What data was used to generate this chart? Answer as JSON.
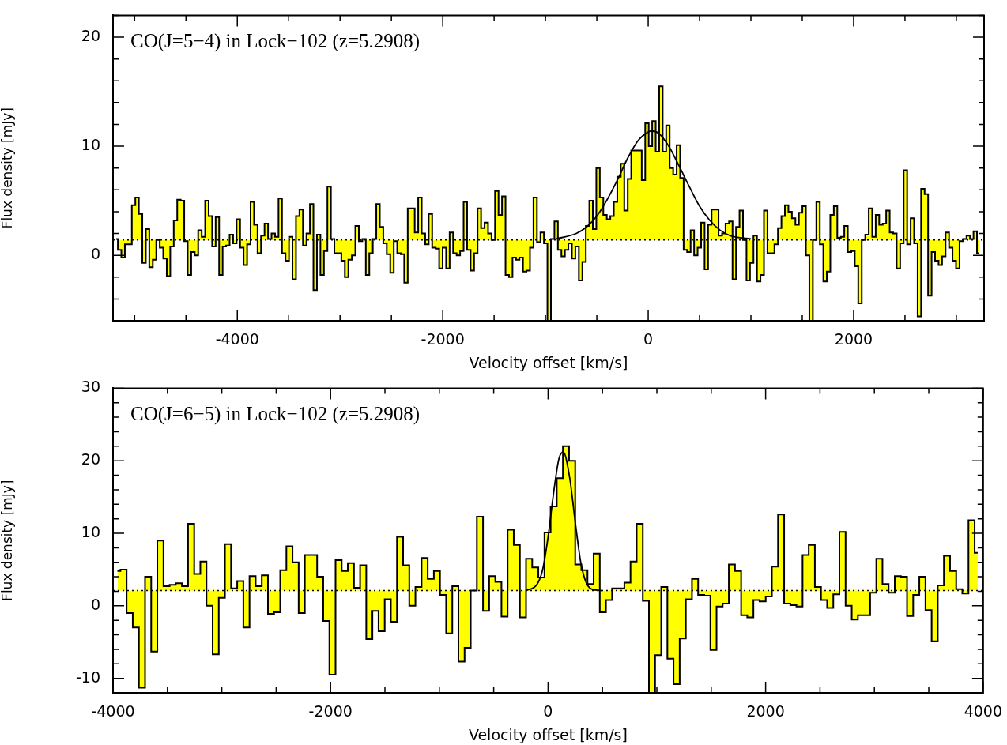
{
  "chart_data": [
    {
      "type": "step",
      "title": "CO(J=5−4) in Lock−102 (z=5.2908)",
      "xlabel": "Velocity offset [km/s]",
      "ylabel": "Flux density [mJy]",
      "xlim": [
        -5210,
        3270
      ],
      "ylim": [
        -6,
        22
      ],
      "xticks": [
        {
          "value": -5000,
          "label": null
        },
        {
          "value": -4500,
          "label": null
        },
        -4000,
        {
          "value": -3500,
          "label": null
        },
        {
          "value": -3000,
          "label": null
        },
        {
          "value": -2500,
          "label": null
        },
        -2000,
        {
          "value": -1500,
          "label": null
        },
        {
          "value": -1000,
          "label": null
        },
        {
          "value": -500,
          "label": null
        },
        0,
        {
          "value": 500,
          "label": null
        },
        {
          "value": 1000,
          "label": null
        },
        {
          "value": 1500,
          "label": null
        },
        2000,
        {
          "value": 2500,
          "label": null
        },
        {
          "value": 3000,
          "label": null
        }
      ],
      "yticks": [
        {
          "value": -6,
          "label": null
        },
        {
          "value": -4,
          "label": null
        },
        {
          "value": -2,
          "label": null
        },
        0,
        {
          "value": 2,
          "label": null
        },
        {
          "value": 4,
          "label": null
        },
        {
          "value": 6,
          "label": null
        },
        {
          "value": 8,
          "label": null
        },
        10,
        {
          "value": 12,
          "label": null
        },
        {
          "value": 14,
          "label": null
        },
        {
          "value": 16,
          "label": null
        },
        {
          "value": 18,
          "label": null
        },
        20,
        {
          "value": 22,
          "label": null
        }
      ],
      "ref_lines": [
        {
          "axis": "y",
          "value": 1.4,
          "color": "#000000",
          "line_style": "dotted"
        }
      ],
      "series": [
        {
          "type": "area",
          "color": "#ffff00",
          "x": [
            -5180,
            -5146,
            -5112,
            -5078,
            -5044,
            -5010,
            -4976,
            -4942,
            -4908,
            -4874,
            -4840,
            -4806,
            -4772,
            -4738,
            -4704,
            -4670,
            -4636,
            -4602,
            -4568,
            -4534,
            -4500,
            -4466,
            -4432,
            -4398,
            -4364,
            -4330,
            -4296,
            -4262,
            -4228,
            -4194,
            -4160,
            -4126,
            -4092,
            -4058,
            -4024,
            -3990,
            -3956,
            -3922,
            -3888,
            -3854,
            -3820,
            -3786,
            -3752,
            -3718,
            -3684,
            -3650,
            -3616,
            -3582,
            -3548,
            -3514,
            -3480,
            -3446,
            -3412,
            -3378,
            -3344,
            -3310,
            -3276,
            -3242,
            -3208,
            -3174,
            -3140,
            -3106,
            -3072,
            -3038,
            -3004,
            -2970,
            -2936,
            -2902,
            -2868,
            -2834,
            -2800,
            -2766,
            -2732,
            -2698,
            -2664,
            -2630,
            -2596,
            -2562,
            -2528,
            -2494,
            -2460,
            -2426,
            -2392,
            -2358,
            -2324,
            -2290,
            -2256,
            -2222,
            -2188,
            -2154,
            -2120,
            -2086,
            -2052,
            -2018,
            -1984,
            -1950,
            -1916,
            -1882,
            -1848,
            -1814,
            -1780,
            -1746,
            -1712,
            -1678,
            -1644,
            -1610,
            -1576,
            -1542,
            -1508,
            -1474,
            -1440,
            -1406,
            -1372,
            -1338,
            -1304,
            -1270,
            -1236,
            -1202,
            -1168,
            -1134,
            -1100,
            -1066,
            -1032,
            -998,
            -964,
            -930,
            -896,
            -862,
            -828,
            -794,
            -760,
            -726,
            -692,
            -658,
            -624,
            -590,
            -556,
            -522,
            -488,
            -454,
            -420,
            -386,
            -352,
            -318,
            -284,
            -250,
            -216,
            -182,
            -148,
            -114,
            -80,
            -46,
            -12,
            22,
            56,
            90,
            124,
            158,
            192,
            226,
            260,
            294,
            328,
            362,
            396,
            430,
            464,
            498,
            532,
            566,
            600,
            634,
            668,
            702,
            736,
            770,
            804,
            838,
            872,
            906,
            940,
            974,
            1008,
            1042,
            1076,
            1110,
            1144,
            1178,
            1212,
            1246,
            1280,
            1314,
            1348,
            1382,
            1416,
            1450,
            1484,
            1518,
            1552,
            1586,
            1620,
            1654,
            1688,
            1722,
            1756,
            1790,
            1824,
            1858,
            1892,
            1926,
            1960,
            1994,
            2028,
            2062,
            2096,
            2130,
            2164,
            2198,
            2232,
            2266,
            2300,
            2334,
            2368,
            2402,
            2436,
            2470,
            2504,
            2538,
            2572,
            2606,
            2640,
            2674,
            2708,
            2742,
            2776,
            2810,
            2844,
            2878,
            2912,
            2946,
            2980,
            3014,
            3048,
            3082,
            3116,
            3150,
            3184,
            3218
          ],
          "values": [
            1.5,
            0.5,
            -0.2,
            1.0,
            1.0,
            4.6,
            5.3,
            3.8,
            -0.7,
            2.4,
            -1.1,
            -0.4,
            1.4,
            0.7,
            -0.3,
            -1.9,
            0.8,
            3.2,
            5.1,
            5.0,
            1.3,
            -1.8,
            0.3,
            0.0,
            2.3,
            1.7,
            5.0,
            3.6,
            0.8,
            3.5,
            -1.8,
            0.8,
            0.9,
            1.9,
            1.1,
            3.3,
            0.7,
            -0.9,
            1.0,
            4.9,
            2.8,
            0.2,
            1.8,
            2.9,
            1.5,
            2.0,
            1.7,
            5.2,
            0.2,
            -0.5,
            1.7,
            -2.2,
            3.6,
            4.2,
            0.9,
            2.0,
            4.7,
            -3.2,
            1.9,
            -1.8,
            0.4,
            6.3,
            1.5,
            0.2,
            0.2,
            -0.5,
            -2.0,
            -0.4,
            0.0,
            2.7,
            1.3,
            1.5,
            -1.8,
            0.2,
            1.5,
            4.7,
            2.6,
            1.1,
            0.1,
            -1.6,
            1.3,
            0.2,
            0.1,
            -2.5,
            4.3,
            4.3,
            2.1,
            5.3,
            2.0,
            1.0,
            3.8,
            0.7,
            0.6,
            -1.2,
            0.7,
            -1.2,
            2.1,
            0.2,
            0.0,
            0.4,
            4.9,
            0.5,
            -1.4,
            0.2,
            4.3,
            2.5,
            3.0,
            2.0,
            1.4,
            5.9,
            3.7,
            5.4,
            -1.8,
            -2.0,
            -0.2,
            -0.4,
            -0.2,
            -1.5,
            -1.4,
            0.7,
            5.3,
            1.2,
            2.1,
            1.1,
            -6.0,
            1.5,
            3.1,
            0.5,
            -0.1,
            0.5,
            1.1,
            -0.3,
            0.8,
            -2.3,
            -0.6,
            2.7,
            5.0,
            2.4,
            8.0,
            5.3,
            3.7,
            3.3,
            3.6,
            4.9,
            7.2,
            8.4,
            4.1,
            7.0,
            9.6,
            9.6,
            9.6,
            6.9,
            12.1,
            10.0,
            12.3,
            9.5,
            15.5,
            9.5,
            11.9,
            8.0,
            7.4,
            10.1,
            7.1,
            0.5,
            0.3,
            2.3,
            0.0,
            0.7,
            3.0,
            -1.3,
            2.8,
            4.2,
            4.2,
            1.8,
            2.0,
            2.9,
            3.1,
            -2.2,
            2.6,
            4.1,
            1.4,
            -2.3,
            -0.7,
            1.8,
            -2.4,
            -1.8,
            4.1,
            0.2,
            0.2,
            1.0,
            2.5,
            3.6,
            4.6,
            4.0,
            3.4,
            2.8,
            3.9,
            4.5,
            0.0,
            -6.0,
            1.4,
            4.9,
            1.0,
            -2.4,
            -1.5,
            3.7,
            4.5,
            1.6,
            1.7,
            2.7,
            0.3,
            0.4,
            -1.0,
            -4.4,
            1.4,
            1.9,
            4.3,
            1.7,
            3.7,
            2.8,
            2.9,
            4.1,
            2.1,
            2.0,
            -1.2,
            1.1,
            7.8,
            1.0,
            3.4,
            1.1,
            -5.6,
            6.1,
            5.6,
            -3.7,
            0.3,
            -0.5,
            -0.9,
            -0.1,
            2.1,
            0.7,
            -0.5,
            -1.2,
            1.3,
            1.5,
            1.8,
            1.5,
            2.2,
            0.2
          ]
        },
        {
          "type": "line",
          "color": "#000000",
          "x": [
            -900,
            -700,
            -600,
            -500,
            -400,
            -300,
            -200,
            -100,
            0,
            32,
            100,
            200,
            300,
            400,
            500,
            600,
            700,
            800,
            1000
          ],
          "values": [
            1.5,
            2.0,
            2.6,
            3.6,
            5.1,
            6.9,
            8.9,
            10.5,
            11.3,
            11.4,
            11.2,
            10.0,
            8.2,
            6.3,
            4.5,
            3.2,
            2.3,
            1.8,
            1.5
          ]
        }
      ]
    },
    {
      "type": "step",
      "title": "CO(J=6−5) in Lock−102 (z=5.2908)",
      "xlabel": "Velocity offset [km/s]",
      "ylabel": "Flux density [mJy]",
      "xlim": [
        -4000,
        4000
      ],
      "ylim": [
        -12,
        30
      ],
      "xticks": [
        -4000,
        {
          "value": -3500,
          "label": null
        },
        {
          "value": -3000,
          "label": null
        },
        {
          "value": -2500,
          "label": null
        },
        -2000,
        {
          "value": -1500,
          "label": null
        },
        {
          "value": -1000,
          "label": null
        },
        {
          "value": -500,
          "label": null
        },
        0,
        {
          "value": 500,
          "label": null
        },
        {
          "value": 1000,
          "label": null
        },
        {
          "value": 1500,
          "label": null
        },
        2000,
        {
          "value": 2500,
          "label": null
        },
        {
          "value": 3000,
          "label": null
        },
        {
          "value": 3500,
          "label": null
        },
        4000
      ],
      "yticks": [
        {
          "value": -12,
          "label": null
        },
        -10,
        {
          "value": -8,
          "label": null
        },
        {
          "value": -6,
          "label": null
        },
        {
          "value": -4,
          "label": null
        },
        {
          "value": -2,
          "label": null
        },
        0,
        {
          "value": 2,
          "label": null
        },
        {
          "value": 4,
          "label": null
        },
        {
          "value": 6,
          "label": null
        },
        {
          "value": 8,
          "label": null
        },
        10,
        {
          "value": 12,
          "label": null
        },
        {
          "value": 14,
          "label": null
        },
        {
          "value": 16,
          "label": null
        },
        {
          "value": 18,
          "label": null
        },
        20,
        {
          "value": 22,
          "label": null
        },
        {
          "value": 24,
          "label": null
        },
        {
          "value": 26,
          "label": null
        },
        {
          "value": 28,
          "label": null
        },
        30
      ],
      "ref_lines": [
        {
          "axis": "y",
          "value": 2.1,
          "color": "#000000",
          "line_style": "dotted"
        }
      ],
      "series": [
        {
          "type": "area",
          "color": "#ffff00",
          "x": [
            -3960,
            -3903.5,
            -3847,
            -3790.5,
            -3734,
            -3677.5,
            -3621,
            -3564.5,
            -3508,
            -3451.5,
            -3395,
            -3338.5,
            -3282,
            -3225.5,
            -3169,
            -3112.5,
            -3056,
            -2999.5,
            -2943,
            -2886.5,
            -2830,
            -2773.5,
            -2717,
            -2660.5,
            -2604,
            -2547.5,
            -2491,
            -2434.5,
            -2378,
            -2321.5,
            -2265,
            -2208.5,
            -2152,
            -2095.5,
            -2039,
            -1982.5,
            -1926,
            -1869.5,
            -1813,
            -1756.5,
            -1700,
            -1643.5,
            -1587,
            -1530.5,
            -1474,
            -1417.5,
            -1361,
            -1304.5,
            -1248,
            -1191.5,
            -1135,
            -1078.5,
            -1022,
            -965.5,
            -909,
            -852.5,
            -796,
            -739.5,
            -683,
            -626.5,
            -570,
            -513.5,
            -457,
            -400.5,
            -344,
            -287.5,
            -231,
            -174.5,
            -118,
            -61.5,
            -5,
            51.5,
            108,
            164.5,
            221,
            277.5,
            334,
            390.5,
            447,
            503.5,
            560,
            616.5,
            673,
            729.5,
            786,
            842.5,
            899,
            955.5,
            1012,
            1068.5,
            1125,
            1181.5,
            1238,
            1294.5,
            1351,
            1407.5,
            1464,
            1520.5,
            1577,
            1633.5,
            1690,
            1746.5,
            1803,
            1859.5,
            1916,
            1972.5,
            2029,
            2085.5,
            2142,
            2198.5,
            2255,
            2311.5,
            2368,
            2424.5,
            2481,
            2537.5,
            2594,
            2650.5,
            2707,
            2763.5,
            2820,
            2876.5,
            2933,
            2989.5,
            3046,
            3102.5,
            3159,
            3215.5,
            3272,
            3328.5,
            3385,
            3441.5,
            3498,
            3554.5,
            3611,
            3667.5,
            3724,
            3780.5,
            3837,
            3893.5,
            3950
          ],
          "values": [
            4.8,
            5.0,
            -1.0,
            -3.0,
            -11.3,
            4.0,
            -6.3,
            9.0,
            2.7,
            2.9,
            3.1,
            2.7,
            11.3,
            4.4,
            6.1,
            0.0,
            -6.7,
            1.1,
            8.5,
            2.4,
            3.4,
            -3.0,
            4.1,
            2.7,
            4.2,
            -1.1,
            -0.9,
            4.9,
            8.2,
            6.0,
            -1.0,
            7.0,
            7.0,
            4.0,
            -2.1,
            -9.5,
            6.3,
            4.8,
            5.9,
            2.5,
            5.6,
            -4.6,
            -0.7,
            -3.5,
            0.9,
            -2.2,
            9.5,
            5.6,
            0.0,
            2.6,
            6.6,
            3.7,
            4.8,
            1.5,
            -3.8,
            2.7,
            -7.7,
            -5.8,
            2.1,
            12.3,
            -0.7,
            4.1,
            3.3,
            -1.5,
            10.5,
            8.4,
            -1.6,
            6.5,
            5.3,
            3.9,
            10.1,
            13.7,
            17.6,
            22.0,
            20.0,
            5.7,
            4.9,
            3.0,
            7.2,
            -0.9,
            0.8,
            2.4,
            2.4,
            3.2,
            6.1,
            11.3,
            0.7,
            -12,
            -6.8,
            2.6,
            -7.3,
            -10.8,
            -4.5,
            0.9,
            3.7,
            1.5,
            1.4,
            -6.1,
            -0.1,
            0.3,
            5.7,
            4.8,
            -1.3,
            -1.6,
            0.8,
            0.6,
            1.3,
            5.4,
            12.6,
            0.3,
            0.1,
            -0.1,
            7.0,
            8.4,
            2.6,
            0.8,
            -0.3,
            1.6,
            10.2,
            0.0,
            -1.9,
            -1.3,
            -1.3,
            1.8,
            6.5,
            3.0,
            1.8,
            4.1,
            4.0,
            -1.4,
            1.5,
            4.0,
            -0.6,
            -4.9,
            2.8,
            6.9,
            4.8,
            2.3,
            1.7,
            11.8,
            7.3
          ]
        },
        {
          "type": "line",
          "color": "#000000",
          "x": [
            -200,
            -100,
            -50,
            0,
            50,
            100,
            140,
            200,
            250,
            300,
            350,
            400,
            500
          ],
          "values": [
            2.1,
            3.0,
            5.0,
            9.5,
            15.5,
            20.3,
            21.2,
            17.5,
            11.5,
            6.0,
            3.2,
            2.3,
            2.1
          ]
        }
      ]
    }
  ]
}
